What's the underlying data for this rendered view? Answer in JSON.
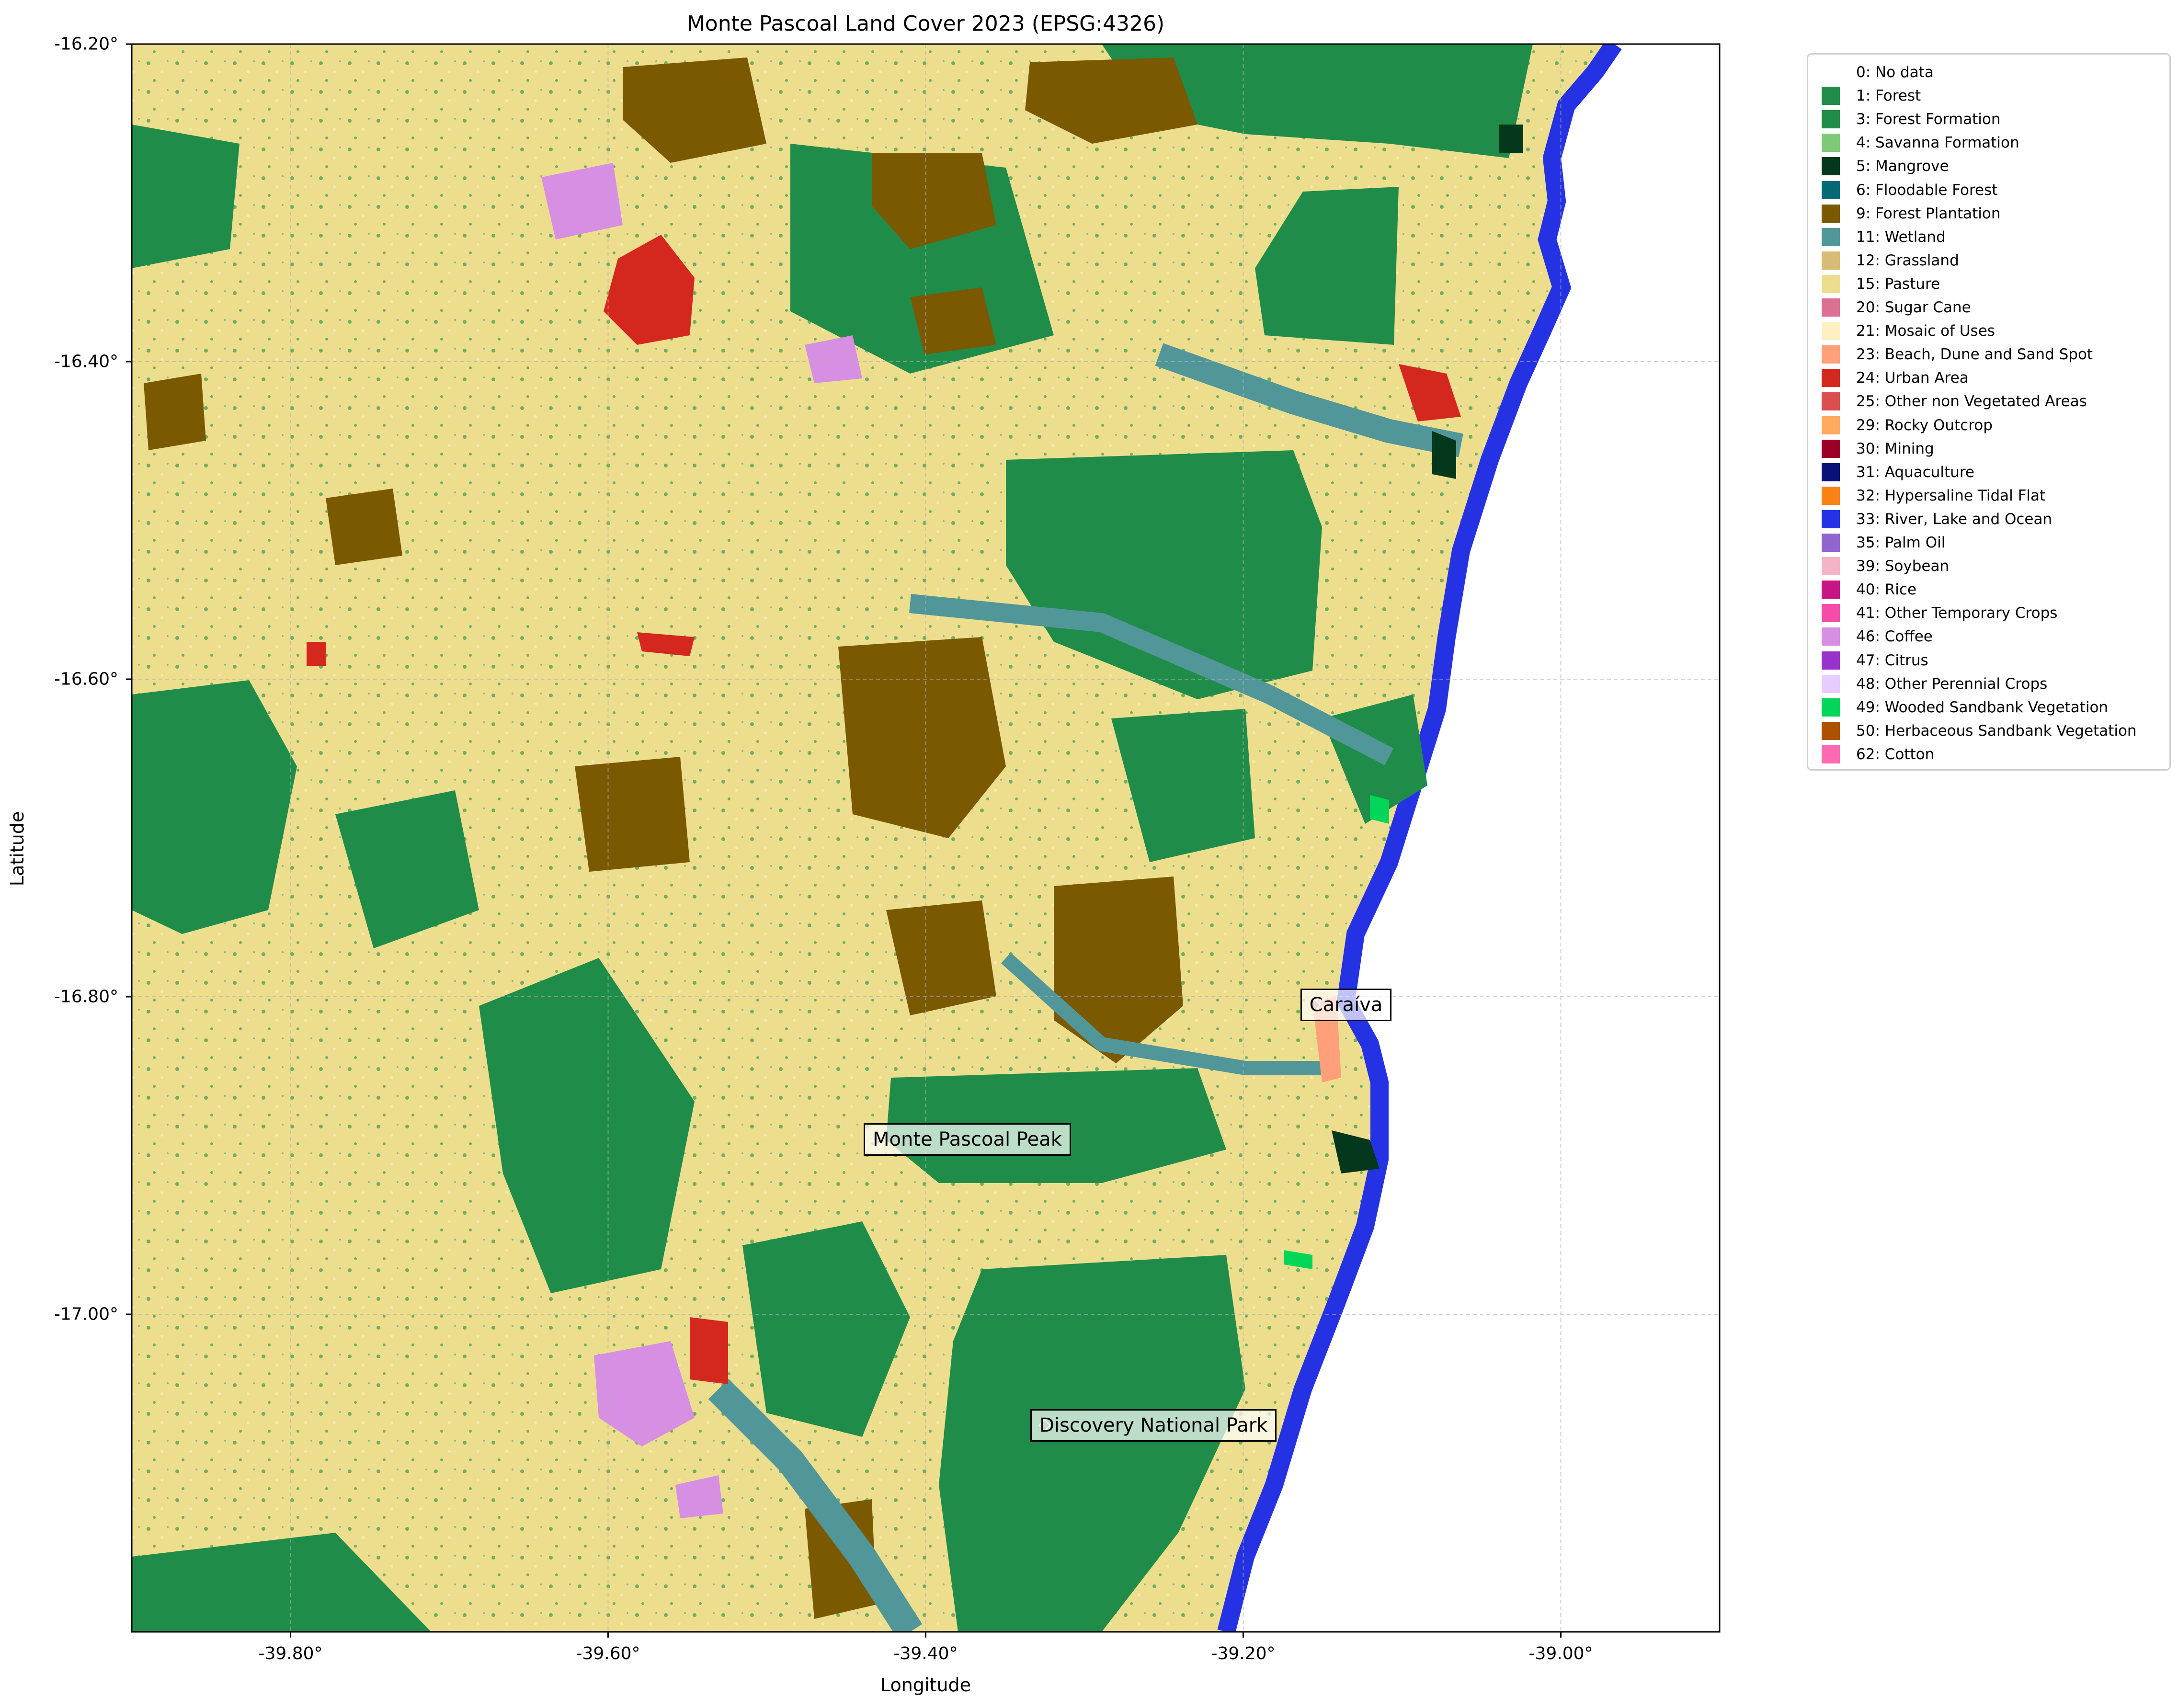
{
  "title": "Monte Pascoal Land Cover 2023 (EPSG:4326)",
  "xlabel": "Longitude",
  "ylabel": "Latitude",
  "map": {
    "crs": "EPSG:4326",
    "xlim": [
      -39.9,
      -38.9
    ],
    "ylim": [
      -17.2,
      -16.2
    ],
    "grid": true,
    "x_ticks": [
      {
        "value": -39.8,
        "label": "-39.80°"
      },
      {
        "value": -39.6,
        "label": "-39.60°"
      },
      {
        "value": -39.4,
        "label": "-39.40°"
      },
      {
        "value": -39.2,
        "label": "-39.20°"
      },
      {
        "value": -39.0,
        "label": "-39.00°"
      }
    ],
    "y_ticks": [
      {
        "value": -16.2,
        "label": "-16.20°"
      },
      {
        "value": -16.4,
        "label": "-16.40°"
      },
      {
        "value": -16.6,
        "label": "-16.60°"
      },
      {
        "value": -16.8,
        "label": "-16.80°"
      },
      {
        "value": -17.0,
        "label": "-17.00°"
      }
    ],
    "places": [
      {
        "name": "Caraíva",
        "lon": -39.155,
        "lat": -16.805
      },
      {
        "name": "Monte Pascoal Peak",
        "lon": -39.43,
        "lat": -16.89
      },
      {
        "name": "Discovery National Park",
        "lon": -39.325,
        "lat": -17.07
      }
    ]
  },
  "legend": [
    {
      "label": "0: No data",
      "color": "#ffffff"
    },
    {
      "label": "1: Forest",
      "color": "#1f8d49"
    },
    {
      "label": "3: Forest Formation",
      "color": "#1f8d49"
    },
    {
      "label": "4: Savanna Formation",
      "color": "#7dc975"
    },
    {
      "label": "5: Mangrove",
      "color": "#04381d"
    },
    {
      "label": "6: Floodable Forest",
      "color": "#026975"
    },
    {
      "label": "9: Forest Plantation",
      "color": "#7a5900"
    },
    {
      "label": "11: Wetland",
      "color": "#519799"
    },
    {
      "label": "12: Grassland",
      "color": "#d6bc74"
    },
    {
      "label": "15: Pasture",
      "color": "#edde8e"
    },
    {
      "label": "20: Sugar Cane",
      "color": "#db7093"
    },
    {
      "label": "21: Mosaic of Uses",
      "color": "#ffefc3"
    },
    {
      "label": "23: Beach, Dune and Sand Spot",
      "color": "#ffa07a"
    },
    {
      "label": "24: Urban Area",
      "color": "#d4271e"
    },
    {
      "label": "25: Other non Vegetated Areas",
      "color": "#db4d4f"
    },
    {
      "label": "29: Rocky Outcrop",
      "color": "#ffaa5f"
    },
    {
      "label": "30: Mining",
      "color": "#9c0027"
    },
    {
      "label": "31: Aquaculture",
      "color": "#091077"
    },
    {
      "label": "32: Hypersaline Tidal Flat",
      "color": "#fc8114"
    },
    {
      "label": "33: River, Lake and Ocean",
      "color": "#2532e4"
    },
    {
      "label": "35: Palm Oil",
      "color": "#9065d0"
    },
    {
      "label": "39: Soybean",
      "color": "#f5b3c8"
    },
    {
      "label": "40: Rice",
      "color": "#c71585"
    },
    {
      "label": "41: Other Temporary Crops",
      "color": "#f54ca9"
    },
    {
      "label": "46: Coffee",
      "color": "#d68fe2"
    },
    {
      "label": "47: Citrus",
      "color": "#9932cc"
    },
    {
      "label": "48: Other Perennial Crops",
      "color": "#e6ccff"
    },
    {
      "label": "49: Wooded Sandbank Vegetation",
      "color": "#02d659"
    },
    {
      "label": "50: Herbaceous Sandbank Vegetation",
      "color": "#ad5100"
    },
    {
      "label": "62: Cotton",
      "color": "#ff69b4"
    }
  ]
}
